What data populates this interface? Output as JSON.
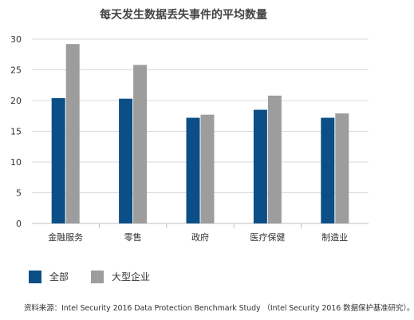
{
  "chart_data": {
    "type": "bar",
    "title": "每天发生数据丢失事件的平均数量",
    "categories": [
      "金融服务",
      "零售",
      "政府",
      "医疗保健",
      "制造业"
    ],
    "series": [
      {
        "name": "全部",
        "values": [
          20.4,
          20.3,
          17.2,
          18.5,
          17.2
        ],
        "color": "#0b4f86"
      },
      {
        "name": "大型企业",
        "values": [
          29.2,
          25.8,
          17.7,
          20.8,
          17.9
        ],
        "color": "#9d9d9d"
      }
    ],
    "yticks": [
      "0",
      "5",
      "10",
      "15",
      "20",
      "25",
      "30"
    ],
    "ylim": [
      0,
      30
    ],
    "grid": true,
    "legend_position": "bottom-left"
  },
  "source_note": "资料来源：Intel Security 2016 Data Protection Benchmark Study （Intel Security 2016 数据保护基准研究）。"
}
